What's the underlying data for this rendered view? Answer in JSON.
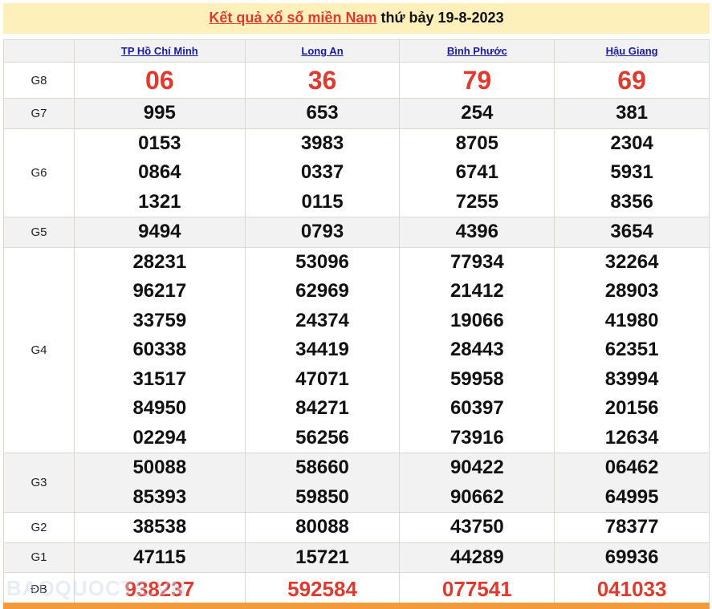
{
  "title": {
    "link": "Kết quả xổ số miền Nam",
    "rest": " thứ bảy 19-8-2023"
  },
  "provinces": [
    "TP Hồ Chí Minh",
    "Long An",
    "Bình Phước",
    "Hậu Giang"
  ],
  "prizes": [
    {
      "label": "G8",
      "values": [
        [
          "06"
        ],
        [
          "36"
        ],
        [
          "79"
        ],
        [
          "69"
        ]
      ]
    },
    {
      "label": "G7",
      "values": [
        [
          "995"
        ],
        [
          "653"
        ],
        [
          "254"
        ],
        [
          "381"
        ]
      ]
    },
    {
      "label": "G6",
      "values": [
        [
          "0153",
          "0864",
          "1321"
        ],
        [
          "3983",
          "0337",
          "0115"
        ],
        [
          "8705",
          "6741",
          "7255"
        ],
        [
          "2304",
          "5931",
          "8356"
        ]
      ]
    },
    {
      "label": "G5",
      "values": [
        [
          "9494"
        ],
        [
          "0793"
        ],
        [
          "4396"
        ],
        [
          "3654"
        ]
      ]
    },
    {
      "label": "G4",
      "values": [
        [
          "28231",
          "96217",
          "33759",
          "60338",
          "31517",
          "84950",
          "02294"
        ],
        [
          "53096",
          "62969",
          "24374",
          "34419",
          "47071",
          "84271",
          "56256"
        ],
        [
          "77934",
          "21412",
          "19066",
          "28443",
          "59958",
          "60397",
          "73916"
        ],
        [
          "32264",
          "28903",
          "41980",
          "62351",
          "83994",
          "20156",
          "12634"
        ]
      ]
    },
    {
      "label": "G3",
      "values": [
        [
          "50088",
          "85393"
        ],
        [
          "58660",
          "59850"
        ],
        [
          "90422",
          "90662"
        ],
        [
          "06462",
          "64995"
        ]
      ]
    },
    {
      "label": "G2",
      "values": [
        [
          "38538"
        ],
        [
          "80088"
        ],
        [
          "43750"
        ],
        [
          "78377"
        ]
      ]
    },
    {
      "label": "G1",
      "values": [
        [
          "47115"
        ],
        [
          "15721"
        ],
        [
          "44289"
        ],
        [
          "69936"
        ]
      ]
    },
    {
      "label": "ĐB",
      "values": [
        [
          "938237"
        ],
        [
          "592584"
        ],
        [
          "077541"
        ],
        [
          "041033"
        ]
      ]
    }
  ],
  "watermark": "BAOQUOCTE.VN",
  "colors": {
    "accent": "#e03a2f",
    "header_bg": "#fdf0bb",
    "link": "#1a1a9c",
    "bar": "#f39b3a"
  }
}
